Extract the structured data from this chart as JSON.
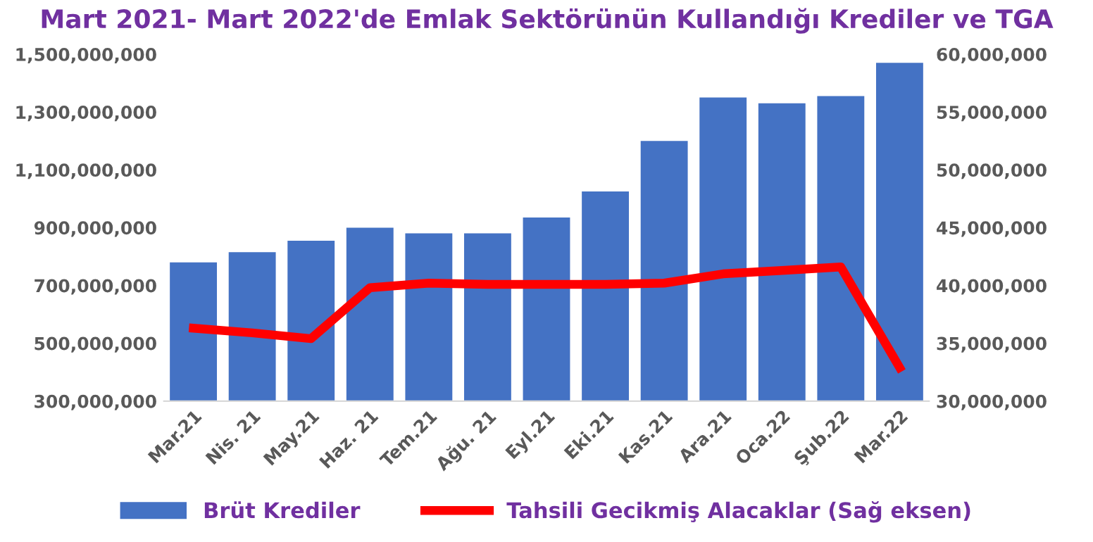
{
  "chart_data": {
    "type": "bar",
    "title": "Mart 2021- Mart 2022'de Emlak Sektörünün Kullandığı Krediler ve TGA",
    "categories": [
      "Mar.21",
      "Nis. 21",
      "May.21",
      "Haz. 21",
      "Tem.21",
      "Ağu. 21",
      "Eyl.21",
      "Eki.21",
      "Kas.21",
      "Ara.21",
      "Oca.22",
      "Şub.22",
      "Mar.22"
    ],
    "series": [
      {
        "name": "Brüt Krediler",
        "color": "#4472c4",
        "values": [
          780000000,
          815000000,
          855000000,
          900000000,
          880000000,
          880000000,
          935000000,
          1025000000,
          1200000000,
          1350000000,
          1330000000,
          1355000000,
          1470000000
        ]
      },
      {
        "name": "Tahsili Gecikmiş Alacaklar (Sağ eksen)",
        "type": "line",
        "axis": "y2",
        "color": "#ff0000",
        "values": [
          36300000,
          35900000,
          35400000,
          39800000,
          40200000,
          40100000,
          40100000,
          40100000,
          40200000,
          41000000,
          41300000,
          41600000,
          32900000
        ]
      }
    ],
    "ylim": [
      300000000,
      1500000000
    ],
    "yticks": [
      {
        "value": 300000000,
        "label": "300,000,000"
      },
      {
        "value": 500000000,
        "label": "500,000,000"
      },
      {
        "value": 700000000,
        "label": "700,000,000"
      },
      {
        "value": 900000000,
        "label": "900,000,000"
      },
      {
        "value": 1100000000,
        "label": "1,100,000,000"
      },
      {
        "value": 1300000000,
        "label": "1,300,000,000"
      },
      {
        "value": 1500000000,
        "label": "1,500,000,000"
      }
    ],
    "y2lim": [
      30000000,
      60000000
    ],
    "y2ticks": [
      {
        "value": 30000000,
        "label": "30,000,000"
      },
      {
        "value": 35000000,
        "label": "35,000,000"
      },
      {
        "value": 40000000,
        "label": "40,000,000"
      },
      {
        "value": 45000000,
        "label": "45,000,000"
      },
      {
        "value": 50000000,
        "label": "50,000,000"
      },
      {
        "value": 55000000,
        "label": "55,000,000"
      },
      {
        "value": 60000000,
        "label": "60,000,000"
      }
    ],
    "legend": "bottom",
    "grid": false,
    "marker": "none",
    "line_style": "solid"
  }
}
